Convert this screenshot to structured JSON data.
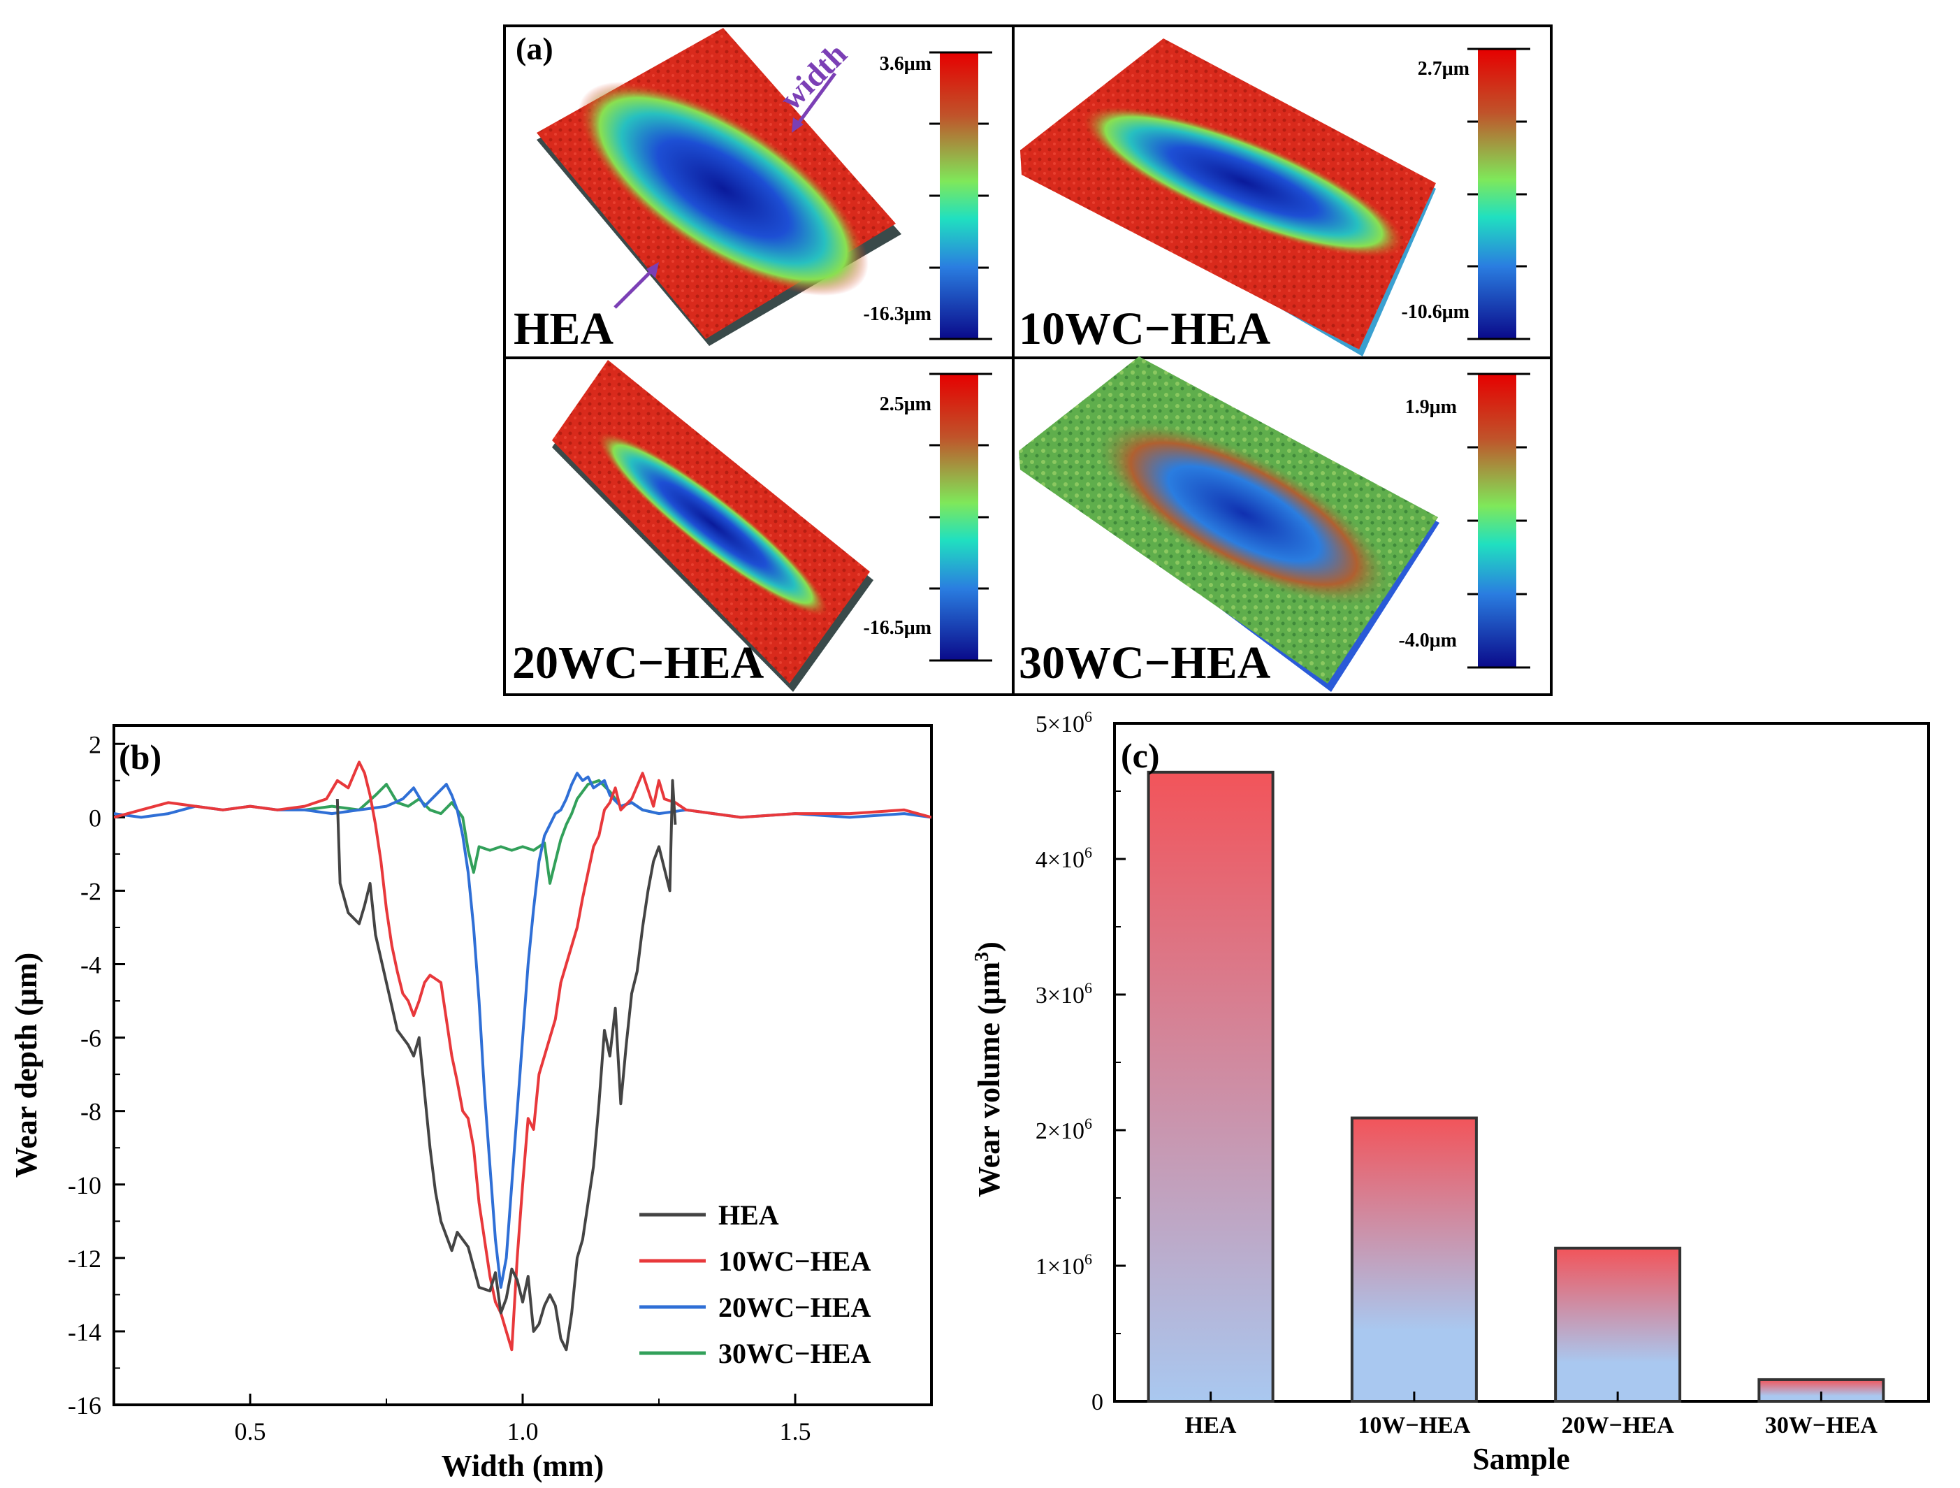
{
  "panel_a": {
    "label": "(a)",
    "annotation": "width",
    "maps": [
      {
        "name": "HEA",
        "scale_max": "3.6μm",
        "scale_min": "-16.3μm",
        "style": "red-top"
      },
      {
        "name": "10WC−HEA",
        "scale_max": "2.7μm",
        "scale_min": "-10.6μm",
        "style": "red-top"
      },
      {
        "name": "20WC−HEA",
        "scale_max": "2.5μm",
        "scale_min": "-16.5μm",
        "style": "red-top"
      },
      {
        "name": "30WC−HEA",
        "scale_max": "1.9μm",
        "scale_min": "-4.0μm",
        "style": "green-top"
      }
    ]
  },
  "colors": {
    "HEA": "#444444",
    "10WC−HEA": "#e8383b",
    "20WC−HEA": "#2f6fd6",
    "30WC−HEA": "#32a05a",
    "bar_top": "#f2545a",
    "bar_bottom": "#a9c8f0"
  },
  "chart_data": [
    {
      "type": "line",
      "panel_label": "(b)",
      "title": "",
      "xlabel": "Width (mm)",
      "ylabel": "Wear depth (μm)",
      "xlim": [
        0.25,
        1.75
      ],
      "ylim": [
        -16,
        2.5
      ],
      "xticks": [
        0.5,
        1.0,
        1.5
      ],
      "xtick_labels": [
        "0.5",
        "1.0",
        "1.5"
      ],
      "yticks": [
        2,
        0,
        -2,
        -4,
        -6,
        -8,
        -10,
        -12,
        -14,
        -16
      ],
      "ytick_labels": [
        "2",
        "0",
        "-2",
        "-4",
        "-6",
        "-8",
        "-10",
        "-12",
        "-14",
        "-16"
      ],
      "legend": "bottom-right",
      "series": [
        {
          "name": "HEA",
          "x": [
            0.66,
            0.665,
            0.68,
            0.7,
            0.71,
            0.72,
            0.73,
            0.75,
            0.77,
            0.79,
            0.8,
            0.81,
            0.82,
            0.83,
            0.84,
            0.85,
            0.87,
            0.88,
            0.9,
            0.92,
            0.94,
            0.95,
            0.96,
            0.97,
            0.98,
            0.99,
            1.0,
            1.01,
            1.02,
            1.03,
            1.04,
            1.05,
            1.06,
            1.07,
            1.08,
            1.09,
            1.1,
            1.11,
            1.12,
            1.13,
            1.14,
            1.15,
            1.16,
            1.17,
            1.18,
            1.19,
            1.2,
            1.21,
            1.22,
            1.23,
            1.24,
            1.25,
            1.26,
            1.27,
            1.275,
            1.28
          ],
          "y": [
            0.5,
            -1.8,
            -2.6,
            -2.9,
            -2.4,
            -1.8,
            -3.2,
            -4.5,
            -5.8,
            -6.2,
            -6.5,
            -6.0,
            -7.5,
            -9.0,
            -10.2,
            -11.0,
            -11.8,
            -11.3,
            -11.7,
            -12.8,
            -12.9,
            -12.4,
            -13.5,
            -13.1,
            -12.3,
            -12.6,
            -13.2,
            -12.5,
            -14.0,
            -13.8,
            -13.3,
            -13.0,
            -13.3,
            -14.2,
            -14.5,
            -13.5,
            -12.0,
            -11.5,
            -10.5,
            -9.5,
            -7.8,
            -5.8,
            -6.5,
            -5.2,
            -7.8,
            -6.2,
            -4.8,
            -4.2,
            -3.0,
            -2.0,
            -1.2,
            -0.8,
            -1.4,
            -2.0,
            1.0,
            -0.2
          ]
        },
        {
          "name": "10WC−HEA",
          "x": [
            0.25,
            0.3,
            0.35,
            0.4,
            0.45,
            0.5,
            0.55,
            0.6,
            0.64,
            0.66,
            0.68,
            0.7,
            0.71,
            0.72,
            0.73,
            0.74,
            0.75,
            0.76,
            0.77,
            0.78,
            0.79,
            0.8,
            0.81,
            0.82,
            0.83,
            0.84,
            0.85,
            0.86,
            0.87,
            0.88,
            0.89,
            0.9,
            0.91,
            0.92,
            0.93,
            0.94,
            0.95,
            0.96,
            0.97,
            0.98,
            0.99,
            1.0,
            1.01,
            1.02,
            1.03,
            1.04,
            1.05,
            1.06,
            1.07,
            1.08,
            1.09,
            1.1,
            1.11,
            1.12,
            1.13,
            1.14,
            1.15,
            1.16,
            1.17,
            1.18,
            1.2,
            1.22,
            1.24,
            1.25,
            1.26,
            1.28,
            1.3,
            1.35,
            1.4,
            1.5,
            1.6,
            1.7,
            1.75
          ],
          "y": [
            0.0,
            0.2,
            0.4,
            0.3,
            0.2,
            0.3,
            0.2,
            0.3,
            0.5,
            1.0,
            0.8,
            1.5,
            1.2,
            0.6,
            -0.2,
            -1.2,
            -2.5,
            -3.5,
            -4.2,
            -4.8,
            -5.0,
            -5.4,
            -5.0,
            -4.5,
            -4.3,
            -4.4,
            -4.5,
            -5.5,
            -6.5,
            -7.2,
            -8.0,
            -8.2,
            -9.0,
            -10.5,
            -11.5,
            -12.5,
            -13.2,
            -13.5,
            -14.0,
            -14.5,
            -12.0,
            -10.0,
            -8.2,
            -8.5,
            -7.0,
            -6.5,
            -6.0,
            -5.5,
            -4.5,
            -4.0,
            -3.5,
            -3.0,
            -2.2,
            -1.5,
            -0.8,
            -0.5,
            0.2,
            0.4,
            0.8,
            0.2,
            0.5,
            1.2,
            0.3,
            1.0,
            0.5,
            0.4,
            0.2,
            0.1,
            0.0,
            0.1,
            0.1,
            0.2,
            0.0
          ]
        },
        {
          "name": "20WC−HEA",
          "x": [
            0.25,
            0.3,
            0.35,
            0.4,
            0.45,
            0.5,
            0.55,
            0.6,
            0.65,
            0.7,
            0.75,
            0.78,
            0.8,
            0.82,
            0.84,
            0.86,
            0.87,
            0.88,
            0.89,
            0.9,
            0.91,
            0.92,
            0.93,
            0.94,
            0.95,
            0.96,
            0.97,
            0.98,
            0.99,
            1.0,
            1.01,
            1.02,
            1.03,
            1.04,
            1.05,
            1.06,
            1.07,
            1.08,
            1.09,
            1.1,
            1.11,
            1.12,
            1.13,
            1.14,
            1.15,
            1.16,
            1.18,
            1.2,
            1.22,
            1.25,
            1.3,
            1.4,
            1.5,
            1.6,
            1.7,
            1.75
          ],
          "y": [
            0.1,
            0.0,
            0.1,
            0.3,
            0.2,
            0.3,
            0.2,
            0.2,
            0.1,
            0.2,
            0.3,
            0.5,
            0.8,
            0.3,
            0.6,
            0.9,
            0.6,
            0.2,
            -0.5,
            -1.5,
            -3.0,
            -5.0,
            -7.5,
            -9.5,
            -11.5,
            -12.8,
            -12.0,
            -10.0,
            -8.0,
            -6.0,
            -4.0,
            -2.5,
            -1.2,
            -0.5,
            -0.2,
            0.1,
            0.2,
            0.5,
            0.9,
            1.2,
            1.0,
            1.1,
            0.8,
            0.9,
            1.0,
            0.6,
            0.3,
            0.4,
            0.2,
            0.1,
            0.2,
            0.0,
            0.1,
            0.0,
            0.1,
            0.0
          ]
        },
        {
          "name": "30WC−HEA",
          "x": [
            0.6,
            0.65,
            0.7,
            0.73,
            0.75,
            0.77,
            0.79,
            0.81,
            0.83,
            0.85,
            0.87,
            0.89,
            0.9,
            0.91,
            0.92,
            0.94,
            0.96,
            0.98,
            1.0,
            1.02,
            1.04,
            1.05,
            1.06,
            1.07,
            1.08,
            1.09,
            1.1,
            1.12,
            1.14,
            1.16,
            1.18,
            1.2,
            1.22,
            1.25
          ],
          "y": [
            0.2,
            0.3,
            0.2,
            0.6,
            0.9,
            0.4,
            0.3,
            0.5,
            0.2,
            0.1,
            0.4,
            0.0,
            -0.9,
            -1.5,
            -0.8,
            -0.9,
            -0.8,
            -0.9,
            -0.8,
            -0.9,
            -0.7,
            -1.8,
            -1.2,
            -0.6,
            -0.2,
            0.1,
            0.5,
            0.9,
            1.0,
            0.7,
            0.3,
            0.4,
            0.2,
            0.1
          ]
        }
      ]
    },
    {
      "type": "bar",
      "panel_label": "(c)",
      "title": "",
      "xlabel": "Sample",
      "ylabel_main": "Wear volume (μm",
      "ylabel_sup": "3",
      "ylabel_end": ")",
      "categories": [
        "HEA",
        "10W−HEA",
        "20W−HEA",
        "30W−HEA"
      ],
      "values": [
        4640000,
        2090000,
        1130000,
        160000
      ],
      "ylim": [
        0,
        5000000
      ],
      "yticks": [
        0,
        1000000,
        2000000,
        3000000,
        4000000,
        5000000
      ],
      "ytick_mant": [
        "0",
        "1×10",
        "2×10",
        "3×10",
        "4×10",
        "5×10"
      ],
      "ytick_exp": [
        "",
        "6",
        "6",
        "6",
        "6",
        "6"
      ]
    }
  ]
}
